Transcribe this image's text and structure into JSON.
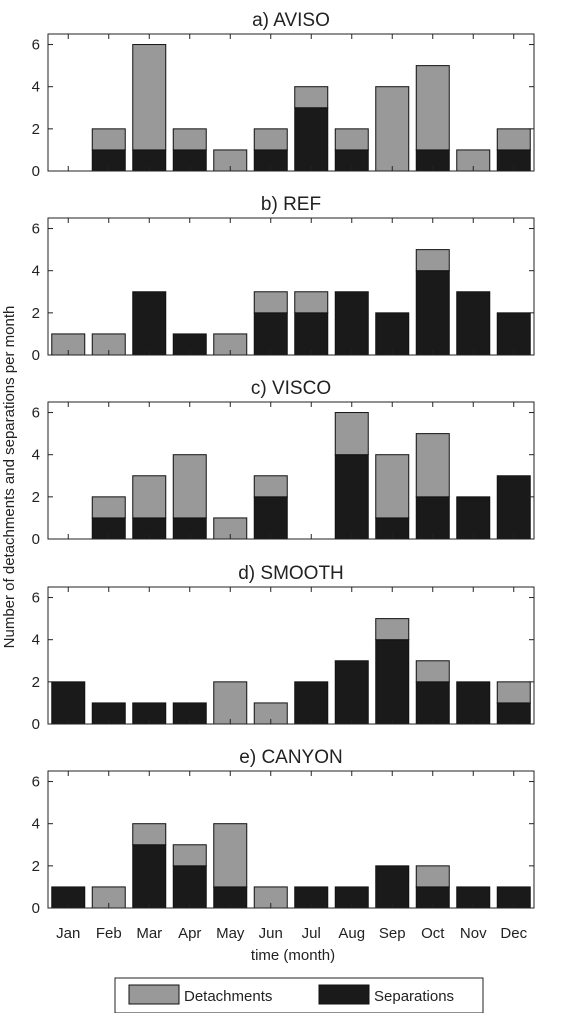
{
  "chart_data": {
    "type": "bar",
    "stacked": true,
    "ylabel": "Number of detachments and separations per month",
    "xlabel": "time (month)",
    "categories": [
      "Jan",
      "Feb",
      "Mar",
      "Apr",
      "May",
      "Jun",
      "Jul",
      "Aug",
      "Sep",
      "Oct",
      "Nov",
      "Dec"
    ],
    "ylim": [
      0,
      6.5
    ],
    "yticks": [
      0,
      2,
      4,
      6
    ],
    "legend": {
      "placement": "bottom",
      "entries": [
        {
          "name": "Detachments",
          "color": "#999999"
        },
        {
          "name": "Separations",
          "color": "#1a1a1a"
        }
      ]
    },
    "panels": [
      {
        "title": "a) AVISO",
        "series": [
          {
            "name": "Separations",
            "values": [
              0,
              1,
              1,
              1,
              0,
              1,
              3,
              1,
              0,
              1,
              0,
              1
            ]
          },
          {
            "name": "Detachments",
            "values": [
              0,
              1,
              5,
              1,
              1,
              1,
              1,
              1,
              4,
              4,
              1,
              1
            ]
          }
        ]
      },
      {
        "title": "b) REF",
        "series": [
          {
            "name": "Separations",
            "values": [
              0,
              0,
              3,
              1,
              0,
              2,
              2,
              3,
              2,
              4,
              3,
              2
            ]
          },
          {
            "name": "Detachments",
            "values": [
              1,
              1,
              0,
              0,
              1,
              1,
              1,
              0,
              0,
              1,
              0,
              0
            ]
          }
        ]
      },
      {
        "title": "c) VISCO",
        "series": [
          {
            "name": "Separations",
            "values": [
              0,
              1,
              1,
              1,
              0,
              2,
              0,
              4,
              1,
              2,
              2,
              3
            ]
          },
          {
            "name": "Detachments",
            "values": [
              0,
              1,
              2,
              3,
              1,
              1,
              0,
              2,
              3,
              3,
              0,
              0
            ]
          }
        ]
      },
      {
        "title": "d) SMOOTH",
        "series": [
          {
            "name": "Separations",
            "values": [
              2,
              1,
              1,
              1,
              0,
              0,
              2,
              3,
              4,
              2,
              2,
              1
            ]
          },
          {
            "name": "Detachments",
            "values": [
              0,
              0,
              0,
              0,
              2,
              1,
              0,
              0,
              1,
              1,
              0,
              1
            ]
          }
        ]
      },
      {
        "title": "e) CANYON",
        "series": [
          {
            "name": "Separations",
            "values": [
              1,
              0,
              3,
              2,
              1,
              0,
              1,
              1,
              2,
              1,
              1,
              1
            ]
          },
          {
            "name": "Detachments",
            "values": [
              0,
              1,
              1,
              1,
              3,
              1,
              0,
              0,
              0,
              1,
              0,
              0
            ]
          }
        ]
      }
    ]
  }
}
